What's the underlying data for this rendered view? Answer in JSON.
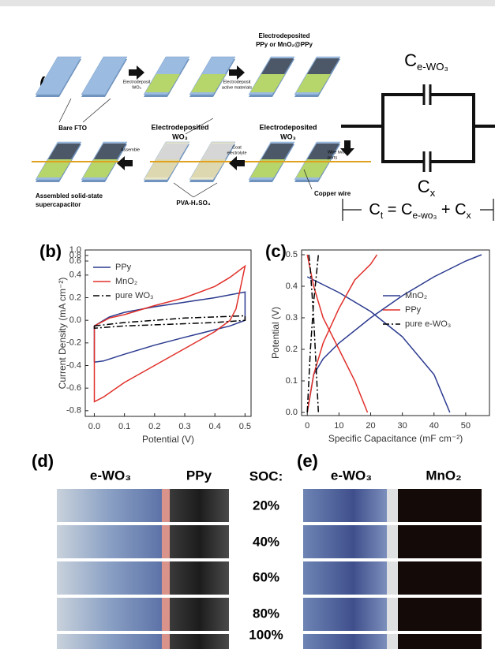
{
  "panel_a": {
    "label": "(a)",
    "labels": [
      "Electrodeposited",
      "PPy or MnO₂@PPy",
      "Electrodeposit",
      "WO₃",
      "Electrodeposit",
      "active materials",
      "Bare FTO",
      "Electrodeposited",
      "WO₃",
      "Electrodeposited",
      "WO₃",
      "Wire two",
      "parts",
      "Coat",
      "electrolyte",
      "Assemble",
      "Copper wire",
      "PVA-H₂SO₄",
      "Assembled solid-state",
      "supercapacitor"
    ],
    "circuit": {
      "top": {
        "symbol": "C",
        "sub": "e-WO₃"
      },
      "bottom": {
        "symbol": "C",
        "sub": "x"
      },
      "equation": [
        {
          "symbol": "C",
          "sub": "t"
        },
        " = ",
        {
          "symbol": "C",
          "sub": "e-wo₃"
        },
        " + ",
        {
          "symbol": "C",
          "sub": "x"
        }
      ]
    }
  },
  "chart_data": [
    {
      "type": "line",
      "panel_label": "(b)",
      "x_label": "Potential (V)",
      "y_label": "Current Density (mA cm⁻²)",
      "xlim": [
        -0.03,
        0.52
      ],
      "xticks": [
        {
          "value": 0,
          "label": "0.0"
        },
        0.1,
        0.2,
        0.3,
        0.4,
        0.5
      ],
      "ylim": [
        -0.85,
        1.0
      ],
      "y_break": 0.5,
      "yticks": [
        -0.8,
        -0.6,
        -0.4,
        -0.2,
        {
          "value": 0,
          "label": "0.0"
        },
        0.2,
        0.4,
        0.6,
        0.8,
        {
          "value": 1.0,
          "label": "1.0"
        }
      ],
      "legend": "upper left",
      "series": [
        {
          "name": "PPy",
          "color": "#2b3a8f",
          "dash": "solid",
          "x": [
            0,
            0,
            0.05,
            0.1,
            0.2,
            0.3,
            0.4,
            0.5,
            0.5,
            0.45,
            0.3,
            0.2,
            0.1,
            0.03,
            0
          ],
          "values": [
            -0.37,
            -0.05,
            0.03,
            0.07,
            0.12,
            0.16,
            0.2,
            0.25,
            0.0,
            -0.05,
            -0.15,
            -0.22,
            -0.3,
            -0.36,
            -0.37
          ]
        },
        {
          "name": "MnO₂",
          "color": "#e0302a",
          "dash": "solid",
          "x": [
            0,
            0.05,
            0.1,
            0.2,
            0.3,
            0.4,
            0.45,
            0.5,
            0.47,
            0.45,
            0.4,
            0.3,
            0.2,
            0.1,
            0.03,
            0,
            0
          ],
          "values": [
            -0.05,
            0.02,
            0.05,
            0.13,
            0.2,
            0.3,
            0.38,
            0.48,
            0.1,
            0.0,
            -0.1,
            -0.25,
            -0.4,
            -0.55,
            -0.68,
            -0.72,
            -0.05
          ]
        },
        {
          "name": "pure WO₃",
          "color": "#000000",
          "dash": "dash-dot",
          "x": [
            0,
            0.1,
            0.2,
            0.3,
            0.4,
            0.5,
            0.5,
            0.4,
            0.3,
            0.2,
            0.1,
            0,
            0
          ],
          "values": [
            -0.05,
            -0.02,
            0.0,
            0.02,
            0.03,
            0.04,
            0.0,
            -0.02,
            -0.03,
            -0.04,
            -0.05,
            -0.07,
            -0.05
          ]
        }
      ]
    },
    {
      "type": "line",
      "panel_label": "(c)",
      "x_label": "Specific Capacitance (mF cm⁻²)",
      "y_label": "Potential (V)",
      "xlim": [
        -1.8,
        57.5
      ],
      "xticks": [
        0,
        10,
        20,
        30,
        40,
        50
      ],
      "ylim": [
        -0.01,
        0.515
      ],
      "yticks": [
        {
          "value": 0,
          "label": "0.0"
        },
        0.1,
        0.2,
        0.3,
        0.4,
        0.5
      ],
      "legend": "center right",
      "series": [
        {
          "name": "MnO₂",
          "color": "#2b3a8f",
          "dash": "solid",
          "x": [
            0,
            2,
            5,
            10,
            20,
            30,
            40,
            50,
            55,
            null,
            0,
            10,
            20,
            30,
            40,
            45
          ],
          "values": [
            0.0,
            0.12,
            0.17,
            0.22,
            0.3,
            0.37,
            0.43,
            0.48,
            0.5,
            null,
            0.43,
            0.38,
            0.32,
            0.24,
            0.12,
            0.0
          ]
        },
        {
          "name": "PPy",
          "color": "#e0302a",
          "dash": "solid",
          "x": [
            0,
            2,
            5,
            10,
            15,
            20,
            22,
            null,
            0,
            2,
            5,
            10,
            15,
            19
          ],
          "values": [
            0.0,
            0.12,
            0.22,
            0.33,
            0.42,
            0.47,
            0.5,
            null,
            0.5,
            0.4,
            0.3,
            0.2,
            0.1,
            0.0
          ]
        },
        {
          "name": "pure e-WO₃",
          "color": "#000000",
          "dash": "dash-dot",
          "x": [
            0,
            1,
            2,
            3,
            3.5,
            null,
            0.5,
            1,
            2,
            3,
            3.5
          ],
          "values": [
            0.0,
            0.2,
            0.35,
            0.45,
            0.5,
            null,
            0.5,
            0.45,
            0.3,
            0.1,
            0.0
          ]
        }
      ]
    }
  ],
  "panel_d": {
    "label": "(d)",
    "headers": [
      "e-WO₃",
      "PPy"
    ]
  },
  "soc": {
    "label": "SOC:",
    "levels": [
      "20%",
      "40%",
      "60%",
      "80%",
      "100%"
    ]
  },
  "panel_e": {
    "label": "(e)",
    "headers": [
      "e-WO₃",
      "MnO₂"
    ]
  }
}
